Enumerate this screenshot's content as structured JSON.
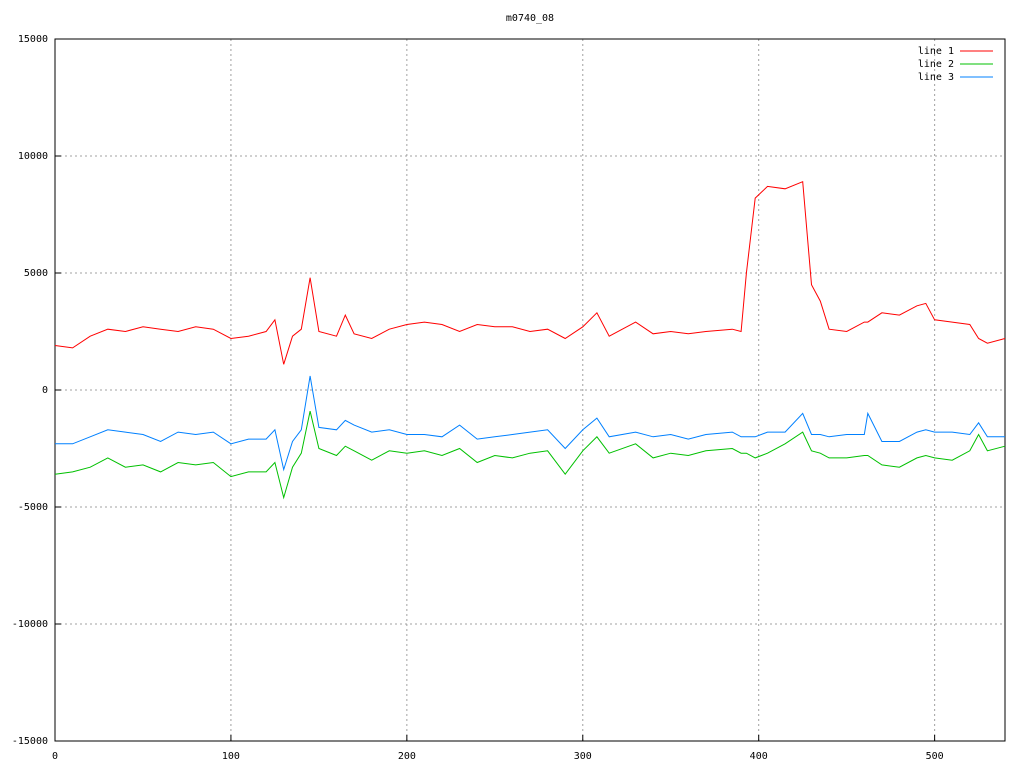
{
  "chart_data": {
    "type": "line",
    "title": "m0740_08",
    "x": [
      0,
      10,
      20,
      30,
      40,
      50,
      60,
      70,
      80,
      90,
      100,
      110,
      120,
      125,
      130,
      135,
      140,
      145,
      150,
      160,
      165,
      170,
      180,
      190,
      200,
      210,
      220,
      230,
      240,
      250,
      260,
      270,
      280,
      290,
      300,
      308,
      315,
      330,
      340,
      350,
      360,
      370,
      385,
      390,
      393,
      398,
      405,
      415,
      425,
      430,
      435,
      440,
      450,
      460,
      462,
      470,
      480,
      490,
      495,
      500,
      510,
      520,
      525,
      530,
      540
    ],
    "series": [
      {
        "name": "line 1",
        "color": "#ff0000",
        "values": [
          1900,
          1800,
          2300,
          2600,
          2500,
          2700,
          2600,
          2500,
          2700,
          2600,
          2200,
          2300,
          2500,
          3000,
          1100,
          2300,
          2600,
          4800,
          2500,
          2300,
          3200,
          2400,
          2200,
          2600,
          2800,
          2900,
          2800,
          2500,
          2800,
          2700,
          2700,
          2500,
          2600,
          2200,
          2700,
          3300,
          2300,
          2900,
          2400,
          2500,
          2400,
          2500,
          2600,
          2500,
          5000,
          8200,
          8700,
          8600,
          8900,
          4500,
          3800,
          2600,
          2500,
          2900,
          2900,
          3300,
          3200,
          3600,
          3700,
          3000,
          2900,
          2800,
          2200,
          2000,
          2200
        ]
      },
      {
        "name": "line 2",
        "color": "#00c000",
        "values": [
          -3600,
          -3500,
          -3300,
          -2900,
          -3300,
          -3200,
          -3500,
          -3100,
          -3200,
          -3100,
          -3700,
          -3500,
          -3500,
          -3100,
          -4600,
          -3300,
          -2700,
          -900,
          -2500,
          -2800,
          -2400,
          -2600,
          -3000,
          -2600,
          -2700,
          -2600,
          -2800,
          -2500,
          -3100,
          -2800,
          -2900,
          -2700,
          -2600,
          -3600,
          -2600,
          -2000,
          -2700,
          -2300,
          -2900,
          -2700,
          -2800,
          -2600,
          -2500,
          -2700,
          -2700,
          -2900,
          -2700,
          -2300,
          -1800,
          -2600,
          -2700,
          -2900,
          -2900,
          -2800,
          -2800,
          -3200,
          -3300,
          -2900,
          -2800,
          -2900,
          -3000,
          -2600,
          -1900,
          -2600,
          -2400
        ]
      },
      {
        "name": "line 3",
        "color": "#0080ff",
        "values": [
          -2300,
          -2300,
          -2000,
          -1700,
          -1800,
          -1900,
          -2200,
          -1800,
          -1900,
          -1800,
          -2300,
          -2100,
          -2100,
          -1700,
          -3400,
          -2200,
          -1700,
          600,
          -1600,
          -1700,
          -1300,
          -1500,
          -1800,
          -1700,
          -1900,
          -1900,
          -2000,
          -1500,
          -2100,
          -2000,
          -1900,
          -1800,
          -1700,
          -2500,
          -1700,
          -1200,
          -2000,
          -1800,
          -2000,
          -1900,
          -2100,
          -1900,
          -1800,
          -2000,
          -2000,
          -2000,
          -1800,
          -1800,
          -1000,
          -1900,
          -1900,
          -2000,
          -1900,
          -1900,
          -1000,
          -2200,
          -2200,
          -1800,
          -1700,
          -1800,
          -1800,
          -1900,
          -1400,
          -2000,
          -2000
        ]
      }
    ],
    "xlim": [
      0,
      540
    ],
    "ylim": [
      -15000,
      15000
    ],
    "xticks": [
      0,
      100,
      200,
      300,
      400,
      500
    ],
    "yticks": [
      -15000,
      -10000,
      -5000,
      0,
      5000,
      10000,
      15000
    ],
    "grid": true,
    "legend": "top-right"
  }
}
